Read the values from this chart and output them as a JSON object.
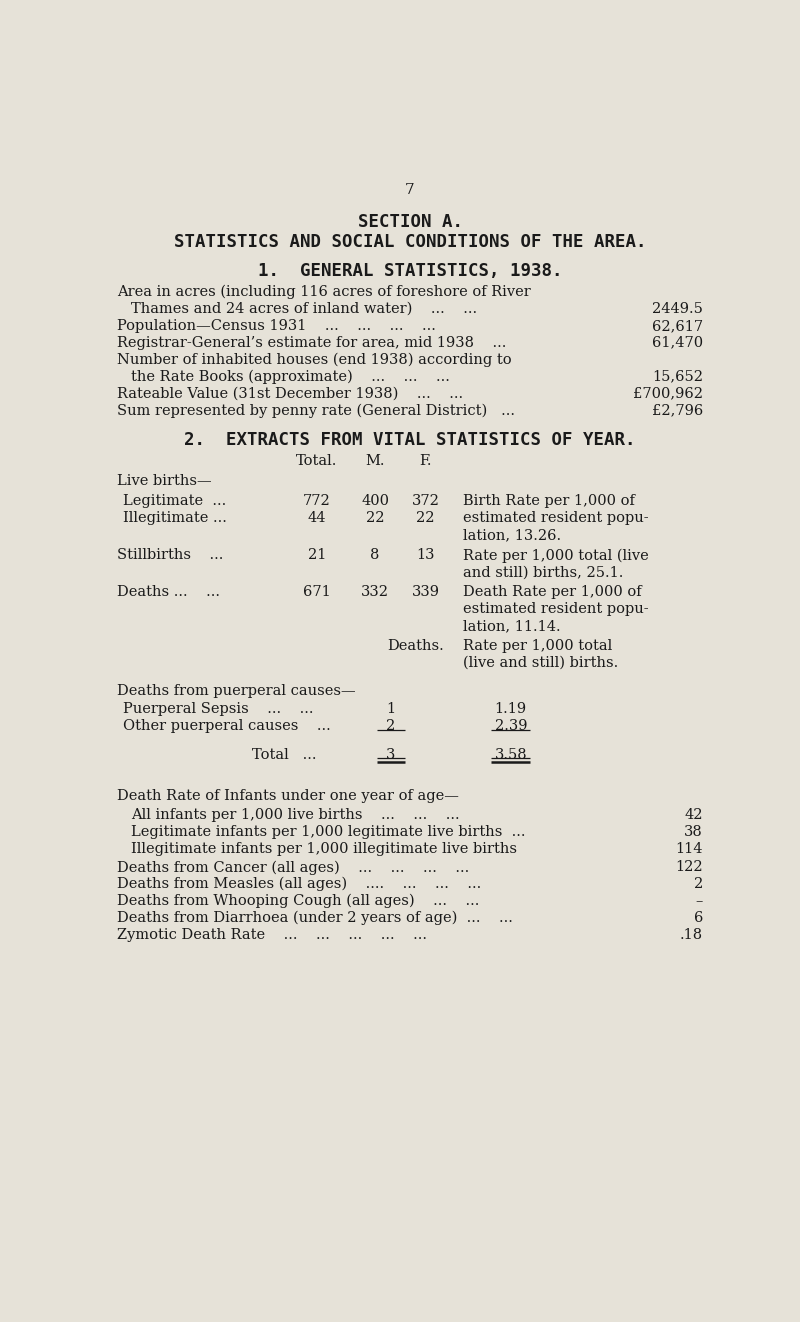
{
  "page_number": "7",
  "bg_color": "#e6e2d8",
  "text_color": "#1a1a1a",
  "title1": "SECTION A.",
  "title2": "STATISTICS AND SOCIAL CONDITIONS OF THE AREA.",
  "section1_heading": "1.  GENERAL STATISTICS, 1938.",
  "section2_heading": "2.  EXTRACTS FROM VITAL STATISTICS OF YEAR.",
  "font_size_body": 10.5,
  "font_size_heading": 12.5,
  "font_size_title": 13.5
}
